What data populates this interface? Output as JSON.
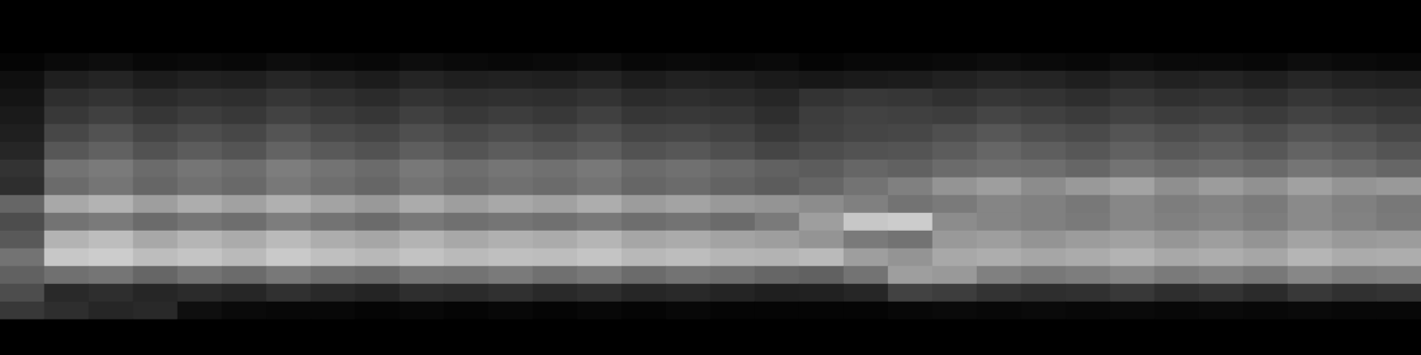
{
  "chart_data": {
    "type": "heatmap",
    "tick_labels": false,
    "zlim": [
      0,
      1
    ],
    "cells": [
      [
        0,
        0,
        0,
        0,
        0,
        0,
        0,
        0,
        0,
        0,
        0,
        0,
        0,
        0,
        0,
        0,
        0,
        0,
        0,
        0,
        0,
        0,
        0,
        0,
        0,
        0,
        0,
        0,
        0,
        0,
        0,
        0
      ],
      [
        0,
        0,
        0,
        0,
        0,
        0,
        0,
        0,
        0,
        0,
        0,
        0,
        0,
        0,
        0,
        0,
        0,
        0,
        0,
        0,
        0,
        0,
        0,
        0,
        0,
        0,
        0,
        0,
        0,
        0,
        0,
        0
      ],
      [
        0,
        0,
        0,
        0,
        0,
        0,
        0,
        0,
        0,
        0,
        0,
        0,
        0,
        0,
        0,
        0,
        0,
        0,
        0,
        0,
        0,
        0,
        0,
        0,
        0,
        0,
        0,
        0,
        0,
        0,
        0,
        0
      ],
      [
        0.02,
        0.04,
        0.05,
        0.03,
        0.04,
        0.03,
        0.05,
        0.04,
        0.03,
        0.05,
        0.04,
        0.03,
        0.04,
        0.05,
        0.03,
        0.04,
        0.03,
        0.04,
        0.02,
        0.03,
        0.03,
        0.04,
        0.05,
        0.04,
        0.03,
        0.05,
        0.04,
        0.04,
        0.03,
        0.05,
        0.04,
        0.03
      ],
      [
        0.06,
        0.12,
        0.14,
        0.11,
        0.13,
        0.12,
        0.15,
        0.13,
        0.11,
        0.14,
        0.12,
        0.13,
        0.12,
        0.14,
        0.11,
        0.13,
        0.12,
        0.1,
        0.09,
        0.1,
        0.11,
        0.13,
        0.15,
        0.14,
        0.12,
        0.15,
        0.13,
        0.14,
        0.12,
        0.15,
        0.13,
        0.12
      ],
      [
        0.08,
        0.18,
        0.2,
        0.17,
        0.19,
        0.18,
        0.21,
        0.19,
        0.17,
        0.2,
        0.18,
        0.19,
        0.18,
        0.2,
        0.17,
        0.18,
        0.17,
        0.15,
        0.2,
        0.22,
        0.21,
        0.19,
        0.21,
        0.2,
        0.18,
        0.21,
        0.19,
        0.2,
        0.18,
        0.21,
        0.19,
        0.18
      ],
      [
        0.1,
        0.22,
        0.25,
        0.21,
        0.24,
        0.22,
        0.26,
        0.23,
        0.21,
        0.25,
        0.22,
        0.24,
        0.22,
        0.25,
        0.21,
        0.22,
        0.21,
        0.18,
        0.24,
        0.26,
        0.25,
        0.24,
        0.27,
        0.25,
        0.23,
        0.26,
        0.24,
        0.25,
        0.23,
        0.26,
        0.24,
        0.22
      ],
      [
        0.12,
        0.28,
        0.32,
        0.27,
        0.3,
        0.28,
        0.33,
        0.29,
        0.27,
        0.31,
        0.28,
        0.3,
        0.28,
        0.31,
        0.27,
        0.28,
        0.26,
        0.22,
        0.25,
        0.27,
        0.28,
        0.31,
        0.34,
        0.31,
        0.29,
        0.33,
        0.3,
        0.32,
        0.29,
        0.33,
        0.31,
        0.28
      ],
      [
        0.15,
        0.34,
        0.38,
        0.32,
        0.36,
        0.33,
        0.39,
        0.35,
        0.32,
        0.37,
        0.33,
        0.36,
        0.34,
        0.37,
        0.32,
        0.34,
        0.31,
        0.27,
        0.3,
        0.32,
        0.33,
        0.36,
        0.4,
        0.37,
        0.34,
        0.38,
        0.35,
        0.37,
        0.34,
        0.39,
        0.36,
        0.33
      ],
      [
        0.2,
        0.45,
        0.48,
        0.42,
        0.46,
        0.43,
        0.49,
        0.45,
        0.42,
        0.47,
        0.43,
        0.46,
        0.44,
        0.47,
        0.42,
        0.44,
        0.41,
        0.38,
        0.36,
        0.4,
        0.38,
        0.42,
        0.44,
        0.43,
        0.4,
        0.45,
        0.42,
        0.44,
        0.41,
        0.46,
        0.43,
        0.4
      ],
      [
        0.18,
        0.42,
        0.46,
        0.4,
        0.44,
        0.41,
        0.47,
        0.43,
        0.4,
        0.45,
        0.41,
        0.44,
        0.42,
        0.45,
        0.4,
        0.42,
        0.39,
        0.36,
        0.4,
        0.45,
        0.5,
        0.58,
        0.62,
        0.55,
        0.6,
        0.64,
        0.56,
        0.61,
        0.57,
        0.63,
        0.58,
        0.6
      ],
      [
        0.4,
        0.66,
        0.7,
        0.62,
        0.68,
        0.63,
        0.69,
        0.64,
        0.6,
        0.67,
        0.62,
        0.66,
        0.63,
        0.68,
        0.61,
        0.64,
        0.6,
        0.58,
        0.55,
        0.5,
        0.45,
        0.48,
        0.52,
        0.5,
        0.47,
        0.53,
        0.49,
        0.51,
        0.48,
        0.54,
        0.5,
        0.47
      ],
      [
        0.3,
        0.45,
        0.48,
        0.42,
        0.46,
        0.43,
        0.49,
        0.45,
        0.42,
        0.47,
        0.44,
        0.46,
        0.44,
        0.47,
        0.43,
        0.45,
        0.42,
        0.48,
        0.62,
        0.78,
        0.8,
        0.55,
        0.52,
        0.5,
        0.48,
        0.53,
        0.5,
        0.52,
        0.49,
        0.54,
        0.51,
        0.48
      ],
      [
        0.35,
        0.7,
        0.74,
        0.66,
        0.71,
        0.67,
        0.73,
        0.68,
        0.65,
        0.7,
        0.66,
        0.69,
        0.67,
        0.71,
        0.65,
        0.67,
        0.64,
        0.62,
        0.58,
        0.48,
        0.45,
        0.6,
        0.62,
        0.58,
        0.61,
        0.63,
        0.59,
        0.62,
        0.58,
        0.64,
        0.6,
        0.61
      ],
      [
        0.45,
        0.78,
        0.8,
        0.74,
        0.77,
        0.73,
        0.79,
        0.75,
        0.72,
        0.76,
        0.73,
        0.75,
        0.74,
        0.77,
        0.72,
        0.74,
        0.71,
        0.7,
        0.73,
        0.62,
        0.58,
        0.66,
        0.68,
        0.65,
        0.67,
        0.7,
        0.66,
        0.68,
        0.65,
        0.71,
        0.67,
        0.68
      ],
      [
        0.38,
        0.44,
        0.46,
        0.4,
        0.45,
        0.42,
        0.47,
        0.43,
        0.41,
        0.46,
        0.45,
        0.48,
        0.44,
        0.47,
        0.42,
        0.45,
        0.43,
        0.4,
        0.38,
        0.45,
        0.62,
        0.6,
        0.5,
        0.47,
        0.49,
        0.52,
        0.48,
        0.5,
        0.47,
        0.53,
        0.49,
        0.5
      ],
      [
        0.3,
        0.16,
        0.18,
        0.15,
        0.17,
        0.15,
        0.19,
        0.16,
        0.14,
        0.18,
        0.17,
        0.19,
        0.16,
        0.18,
        0.15,
        0.16,
        0.14,
        0.12,
        0.13,
        0.15,
        0.26,
        0.24,
        0.2,
        0.18,
        0.19,
        0.22,
        0.18,
        0.2,
        0.17,
        0.22,
        0.19,
        0.2
      ],
      [
        0.22,
        0.18,
        0.15,
        0.16,
        0.06,
        0.04,
        0.03,
        0.03,
        0.02,
        0.03,
        0.02,
        0.03,
        0.02,
        0.03,
        0.02,
        0.03,
        0.02,
        0.02,
        0.02,
        0.02,
        0.03,
        0.04,
        0.03,
        0.04,
        0.03,
        0.04,
        0.03,
        0.04,
        0.03,
        0.04,
        0.03,
        0.03
      ],
      [
        0,
        0,
        0,
        0,
        0,
        0,
        0,
        0,
        0,
        0,
        0,
        0,
        0,
        0,
        0,
        0,
        0,
        0,
        0,
        0,
        0,
        0,
        0,
        0,
        0,
        0,
        0,
        0,
        0,
        0,
        0,
        0
      ],
      [
        0,
        0,
        0,
        0,
        0,
        0,
        0,
        0,
        0,
        0,
        0,
        0,
        0,
        0,
        0,
        0,
        0,
        0,
        0,
        0,
        0,
        0,
        0,
        0,
        0,
        0,
        0,
        0,
        0,
        0,
        0,
        0
      ]
    ]
  }
}
